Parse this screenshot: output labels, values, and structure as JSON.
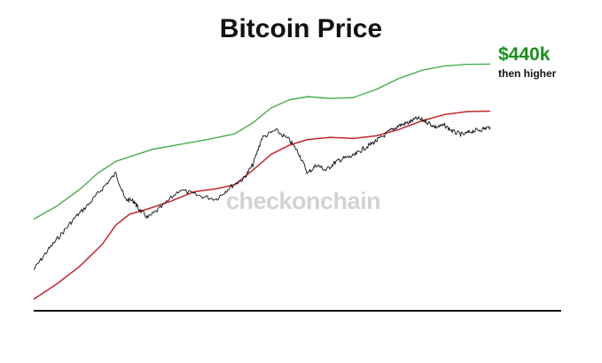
{
  "chart_data": {
    "type": "line",
    "title": "Bitcoin Price",
    "xlabel": "",
    "ylabel": "",
    "grid": false,
    "legend": "none",
    "scale": "log",
    "annotation": {
      "value": "$440k",
      "subtitle": "then higher",
      "color": "#1a8f1a"
    },
    "watermark": "checkonchain",
    "colors": {
      "price": "#111111",
      "upper_band": "#3aa845",
      "lower_band": "#c6252b",
      "baseline": "#111111"
    },
    "series": [
      {
        "key": "price",
        "x": [
          0,
          3,
          6,
          9,
          12,
          15,
          18,
          20,
          22,
          23,
          25,
          28,
          32,
          36,
          40,
          43,
          46,
          48,
          50,
          53,
          56,
          58,
          60,
          62,
          64,
          66,
          68,
          70,
          72,
          74,
          76,
          78,
          80,
          82,
          84,
          86,
          88,
          90,
          92,
          94,
          96,
          98,
          100
        ],
        "values": [
          0.05,
          0.09,
          0.15,
          0.25,
          0.38,
          0.62,
          1.0,
          0.45,
          0.42,
          0.33,
          0.25,
          0.35,
          0.6,
          0.5,
          0.45,
          0.65,
          0.85,
          1.3,
          3.0,
          3.8,
          2.8,
          1.9,
          1.0,
          1.3,
          1.1,
          1.4,
          1.6,
          1.7,
          2.1,
          2.5,
          3.0,
          3.7,
          4.4,
          4.8,
          5.5,
          5.0,
          4.2,
          4.4,
          3.6,
          3.3,
          3.7,
          3.9,
          4.2
        ]
      },
      {
        "key": "upper_band",
        "x": [
          0,
          5,
          10,
          14,
          18,
          22,
          26,
          32,
          38,
          44,
          48,
          52,
          56,
          60,
          65,
          70,
          75,
          80,
          85,
          90,
          95,
          100
        ],
        "values": [
          0.24,
          0.36,
          0.6,
          1.0,
          1.45,
          1.75,
          2.1,
          2.45,
          2.85,
          3.4,
          4.8,
          7.6,
          9.8,
          10.8,
          10.2,
          10.5,
          13.5,
          19.0,
          24.5,
          28.0,
          29.5,
          29.7
        ]
      },
      {
        "key": "lower_band",
        "x": [
          0,
          5,
          10,
          15,
          18,
          21,
          25,
          30,
          35,
          40,
          44,
          48,
          52,
          56,
          60,
          65,
          70,
          75,
          80,
          85,
          90,
          95,
          100
        ],
        "values": [
          0.02,
          0.032,
          0.055,
          0.11,
          0.2,
          0.28,
          0.33,
          0.42,
          0.56,
          0.62,
          0.7,
          1.1,
          1.8,
          2.4,
          2.85,
          3.05,
          2.95,
          3.2,
          3.9,
          5.1,
          6.2,
          6.8,
          6.9
        ]
      }
    ]
  }
}
